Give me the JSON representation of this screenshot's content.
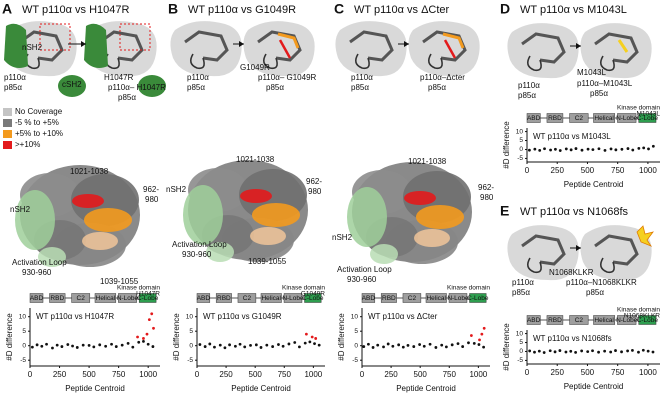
{
  "panels": [
    {
      "letter": "A",
      "title": "WT p110α vs H1047R",
      "cartoon_labels": [
        "nSH2",
        "p110α",
        "p85α",
        "cSH2",
        "H1047R",
        "p110α– H1047R",
        "p85α"
      ],
      "legend": {
        "labels": [
          "No Coverage",
          "-5 % to +5%",
          "+5% to +10%",
          ">+10%"
        ],
        "colors": [
          "#c4c4c4",
          "#7a7a7a",
          "#f39a1e",
          "#e31a1c"
        ]
      },
      "structure_labels": [
        "1021-1038",
        "962-",
        "980",
        "nSH2",
        "Activation Loop",
        "930-960",
        "1039-1055"
      ],
      "plot": {
        "domains": [
          "ABD",
          "RBD",
          "C2",
          "Helical",
          "N-Lobe",
          "C-Lobe"
        ],
        "kinase_label": "Kinase domain",
        "mutation": "H1047R",
        "mutation_color": "#e31a1c",
        "title": "WT p110α vs H1047R",
        "y_label": "#D difference",
        "x_label": "Peptide Centroid",
        "xlim": [
          0,
          1100
        ],
        "xticks": [
          0,
          250,
          500,
          750,
          1000
        ],
        "ylim": [
          -7,
          13
        ],
        "yticks": [
          -5,
          0,
          5,
          10
        ],
        "series": [
          {
            "color": "#111111",
            "x": [
              20,
              60,
              100,
              140,
              190,
              230,
              270,
              320,
              360,
              400,
              450,
              500,
              540,
              590,
              640,
              690,
              730,
              780,
              830,
              870,
              920,
              960,
              1000,
              1040
            ],
            "y": [
              -0.5,
              0.3,
              -0.2,
              0.5,
              -0.8,
              0.2,
              -0.3,
              0.4,
              -0.1,
              -0.6,
              0.2,
              0.1,
              -0.4,
              0.3,
              -0.2,
              0.5,
              -0.3,
              0.2,
              0.8,
              -0.5,
              1.2,
              1.5,
              0.5,
              -0.3
            ]
          },
          {
            "color": "#e31a1c",
            "x": [
              910,
              960,
              990,
              1010,
              1030,
              1045
            ],
            "y": [
              3,
              2.5,
              4,
              9,
              11,
              6
            ]
          }
        ]
      }
    },
    {
      "letter": "B",
      "title": "WT p110α vs G1049R",
      "cartoon_labels": [
        "p110α",
        "p85α",
        "G1049R",
        "p110α– G1049R",
        "p85α"
      ],
      "structure_labels": [
        "1021-1038",
        "962-",
        "980",
        "nSH2",
        "Activation Loop",
        "930-960",
        "1039-1055"
      ],
      "plot": {
        "domains": [
          "ABD",
          "RBD",
          "C2",
          "Helical",
          "N-Lobe",
          "C-Lobe"
        ],
        "kinase_label": "Kinase domain",
        "mutation": "G1049R",
        "mutation_color": "#8e44ad",
        "title": "WT p110α vs G1049R",
        "y_label": "#D difference",
        "x_label": "Peptide Centroid",
        "xlim": [
          0,
          1100
        ],
        "xticks": [
          0,
          250,
          500,
          750,
          1000
        ],
        "ylim": [
          -7,
          13
        ],
        "yticks": [
          -5,
          0,
          5,
          10
        ],
        "series": [
          {
            "color": "#111111",
            "x": [
              25,
              70,
              110,
              150,
              200,
              240,
              280,
              330,
              370,
              410,
              460,
              510,
              550,
              600,
              650,
              700,
              740,
              790,
              840,
              880,
              930,
              970,
              1010,
              1050
            ],
            "y": [
              0.4,
              -0.3,
              0.6,
              -0.5,
              0.2,
              -0.7,
              0.3,
              -0.2,
              0.5,
              -0.4,
              0.1,
              0.3,
              -0.6,
              0.2,
              -0.3,
              0.4,
              -0.2,
              0.6,
              1.1,
              -0.4,
              0.9,
              1.3,
              0.7,
              0.2
            ]
          },
          {
            "color": "#e31a1c",
            "x": [
              940,
              990,
              1020
            ],
            "y": [
              4,
              3,
              2.5
            ]
          }
        ]
      }
    },
    {
      "letter": "C",
      "title": "WT p110α vs ΔCter",
      "cartoon_labels": [
        "p110α",
        "p85α",
        "p110α–Δcter",
        "p85α"
      ],
      "structure_labels": [
        "1021-1038",
        "962-",
        "980",
        "nSH2",
        "Activation Loop",
        "930-960"
      ],
      "plot": {
        "domains": [
          "ABD",
          "RBD",
          "C2",
          "Helical",
          "N-Lobe",
          "C-Lobe"
        ],
        "kinase_label": "Kinase domain",
        "title": "WT p110α vs ΔCter",
        "y_label": "#D difference",
        "x_label": "Peptide Centroid",
        "xlim": [
          0,
          1100
        ],
        "xticks": [
          0,
          250,
          500,
          750,
          1000
        ],
        "ylim": [
          -7,
          13
        ],
        "yticks": [
          -5,
          0,
          5,
          10
        ],
        "series": [
          {
            "color": "#111111",
            "x": [
              15,
              55,
              95,
              135,
              185,
              225,
              265,
              315,
              355,
              395,
              445,
              495,
              535,
              585,
              635,
              685,
              725,
              775,
              825,
              865,
              915,
              965,
              1005,
              1045
            ],
            "y": [
              -0.3,
              0.5,
              -0.6,
              0.2,
              -0.4,
              0.6,
              -0.2,
              0.3,
              -0.5,
              0.1,
              -0.3,
              0.4,
              -0.2,
              0.5,
              -0.6,
              0.2,
              -0.4,
              0.3,
              0.7,
              -0.3,
              1.0,
              0.8,
              0.4,
              -0.5
            ]
          },
          {
            "color": "#e31a1c",
            "x": [
              940,
              1010,
              1030,
              1050
            ],
            "y": [
              3.5,
              2,
              4,
              6
            ]
          }
        ]
      }
    },
    {
      "letter": "D",
      "title": "WT p110α vs M1043L",
      "cartoon_labels": [
        "M1043L",
        "p110α",
        "p85α",
        "p110α–M1043L",
        "p85α"
      ],
      "plot": {
        "domains": [
          "ABD",
          "RBD",
          "C2",
          "Helical",
          "N-Lobe",
          "C-Lobe"
        ],
        "kinase_label": "Kinase domain",
        "mutation": "M1043L",
        "mutation_color": "#f39a1e",
        "title": "WT p110α vs M1043L",
        "y_label": "#D difference",
        "x_label": "Peptide Centroid",
        "xlim": [
          0,
          1100
        ],
        "xticks": [
          0,
          250,
          500,
          750,
          1000
        ],
        "ylim": [
          -7,
          12
        ],
        "yticks": [
          -5,
          0,
          5,
          10
        ],
        "series": [
          {
            "color": "#111111",
            "x": [
              20,
              65,
              105,
              145,
              195,
              235,
              275,
              325,
              365,
              405,
              455,
              505,
              545,
              595,
              645,
              695,
              735,
              785,
              835,
              875,
              925,
              965,
              1005,
              1045
            ],
            "y": [
              -0.4,
              0.2,
              -0.5,
              0.4,
              -0.3,
              0.1,
              -0.6,
              0.3,
              -0.2,
              0.5,
              -0.4,
              0.2,
              -0.1,
              0.4,
              -0.5,
              0.3,
              -0.2,
              0.1,
              0.5,
              -0.3,
              0.6,
              0.9,
              0.3,
              1.8
            ]
          }
        ]
      }
    },
    {
      "letter": "E",
      "title": "WT p110α vs N1068fs",
      "cartoon_labels": [
        "N1068KLKR",
        "p110α",
        "p85α",
        "p110α–N1068KLKR",
        "p85α"
      ],
      "plot": {
        "domains": [
          "ABD",
          "RBD",
          "C2",
          "Helical",
          "N-Lobe",
          "C-Lobe"
        ],
        "kinase_label": "Kinase domain",
        "mutation": "N1068KLKR",
        "mutation_color": "#2b8cd6",
        "title": "WT p110α vs N1068fs",
        "y_label": "#D difference",
        "x_label": "Peptide Centroid",
        "xlim": [
          0,
          1100
        ],
        "xticks": [
          0,
          250,
          500,
          750,
          1000
        ],
        "ylim": [
          -7,
          12
        ],
        "yticks": [
          -5,
          0,
          5,
          10
        ],
        "series": [
          {
            "color": "#111111",
            "x": [
              22,
              62,
              102,
              142,
              192,
              232,
              272,
              322,
              362,
              402,
              452,
              502,
              542,
              592,
              642,
              692,
              732,
              782,
              832,
              872,
              922,
              962,
              1002,
              1042
            ],
            "y": [
              0.3,
              -0.4,
              0.2,
              -0.6,
              0.4,
              -0.2,
              0.5,
              -0.3,
              0.1,
              -0.5,
              0.3,
              -0.1,
              0.4,
              -0.4,
              0.2,
              -0.3,
              0.5,
              -0.2,
              0.3,
              0.6,
              -0.4,
              0.7,
              0.2,
              -0.3
            ]
          }
        ]
      }
    }
  ]
}
